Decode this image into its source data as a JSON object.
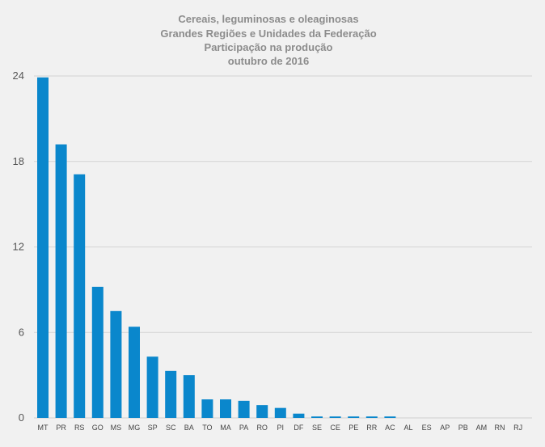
{
  "chart_data": {
    "type": "bar",
    "title": [
      "Cereais, leguminosas e oleaginosas",
      "Grandes Regiões e Unidades da Federação",
      "Participação na produção",
      "outubro de 2016"
    ],
    "xlabel": "",
    "ylabel": "",
    "ylim": [
      0,
      24
    ],
    "yticks": [
      0,
      6,
      12,
      18,
      24
    ],
    "grid": true,
    "legend": "none",
    "bar_color": "#0a87cc",
    "categories": [
      "MT",
      "PR",
      "RS",
      "GO",
      "MS",
      "MG",
      "SP",
      "SC",
      "BA",
      "TO",
      "MA",
      "PA",
      "RO",
      "PI",
      "DF",
      "SE",
      "CE",
      "PE",
      "RR",
      "AC",
      "AL",
      "ES",
      "AP",
      "PB",
      "AM",
      "RN",
      "RJ"
    ],
    "values": [
      23.9,
      19.2,
      17.1,
      9.2,
      7.5,
      6.4,
      4.3,
      3.3,
      3.0,
      1.3,
      1.3,
      1.2,
      0.9,
      0.7,
      0.3,
      0.1,
      0.1,
      0.1,
      0.1,
      0.1,
      0.0,
      0.0,
      0.0,
      0.0,
      0.0,
      0.0,
      0.0
    ]
  }
}
